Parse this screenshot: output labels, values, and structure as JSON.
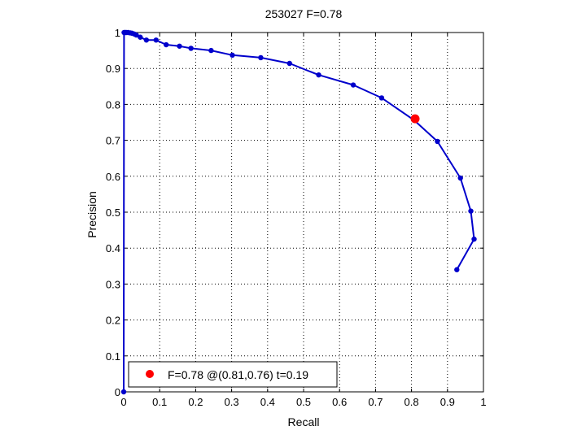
{
  "chart_data": {
    "type": "line",
    "title": "253027 F=0.78",
    "xlabel": "Recall",
    "ylabel": "Precision",
    "xlim": [
      0,
      1
    ],
    "ylim": [
      0,
      1
    ],
    "xticks": [
      0,
      0.1,
      0.2,
      0.3,
      0.4,
      0.5,
      0.6,
      0.7,
      0.8,
      0.9,
      1
    ],
    "xtick_labels": [
      "0",
      "0.1",
      "0.2",
      "0.3",
      "0.4",
      "0.5",
      "0.6",
      "0.7",
      "0.8",
      "0.9",
      "1"
    ],
    "yticks": [
      0,
      0.1,
      0.2,
      0.3,
      0.4,
      0.5,
      0.6,
      0.7,
      0.8,
      0.9,
      1
    ],
    "ytick_labels": [
      "0",
      "0.1",
      "0.2",
      "0.3",
      "0.4",
      "0.5",
      "0.6",
      "0.7",
      "0.8",
      "0.9",
      "1"
    ],
    "grid": true,
    "legend_position": "bottom-left",
    "legend_entry": "F=0.78 @(0.81,0.76) t=0.19",
    "series_color": "#0000cc",
    "marker_color": "#ff0000",
    "series": [
      {
        "x": [
          0.926,
          0.974,
          0.965,
          0.936,
          0.872,
          0.807,
          0.717,
          0.638,
          0.542,
          0.461,
          0.381,
          0.302,
          0.243,
          0.187,
          0.155,
          0.118,
          0.09,
          0.063,
          0.046,
          0.035,
          0.029,
          0.023,
          0.018,
          0.012,
          0.007,
          0.004,
          0.001,
          0
        ],
        "y": [
          0.34,
          0.425,
          0.503,
          0.595,
          0.697,
          0.756,
          0.818,
          0.854,
          0.882,
          0.914,
          0.93,
          0.937,
          0.95,
          0.956,
          0.962,
          0.966,
          0.979,
          0.979,
          0.987,
          0.993,
          0.996,
          0.998,
          0.999,
          1.0,
          1.0,
          1.0,
          1.0,
          0
        ]
      }
    ],
    "highlight_point": {
      "x": 0.81,
      "y": 0.76
    }
  }
}
